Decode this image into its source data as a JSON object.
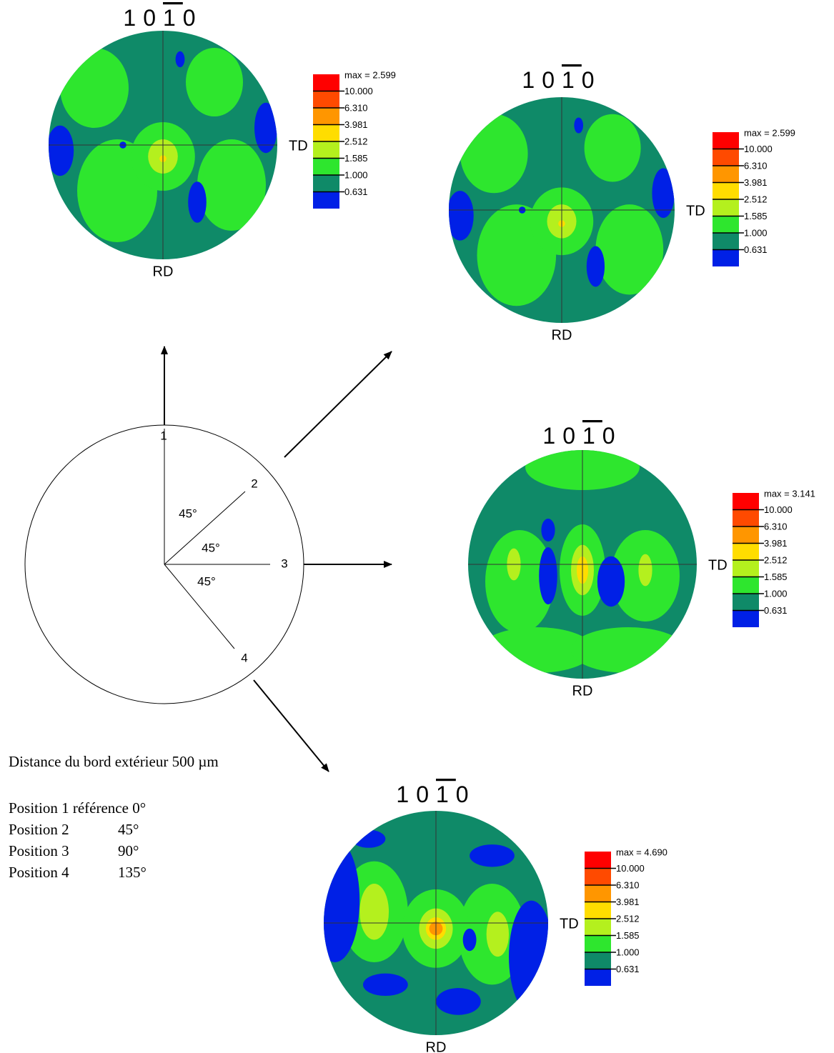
{
  "pole_figures": [
    {
      "title": [
        "1",
        "0",
        "1",
        "0"
      ],
      "max_label": "max = 2.599",
      "levels": [
        "10.000",
        "6.310",
        "3.981",
        "2.512",
        "1.585",
        "1.000",
        "0.631"
      ],
      "td": "TD",
      "rd": "RD"
    },
    {
      "title": [
        "1",
        "0",
        "1",
        "0"
      ],
      "max_label": "max = 2.599",
      "levels": [
        "10.000",
        "6.310",
        "3.981",
        "2.512",
        "1.585",
        "1.000",
        "0.631"
      ],
      "td": "TD",
      "rd": "RD"
    },
    {
      "title": [
        "1",
        "0",
        "1",
        "0"
      ],
      "max_label": "max = 3.141",
      "levels": [
        "10.000",
        "6.310",
        "3.981",
        "2.512",
        "1.585",
        "1.000",
        "0.631"
      ],
      "td": "TD",
      "rd": "RD"
    },
    {
      "title": [
        "1",
        "0",
        "1",
        "0"
      ],
      "max_label": "max = 4.690",
      "levels": [
        "10.000",
        "6.310",
        "3.981",
        "2.512",
        "1.585",
        "1.000",
        "0.631"
      ],
      "td": "TD",
      "rd": "RD"
    }
  ],
  "diagram": {
    "positions": [
      "1",
      "2",
      "3",
      "4"
    ],
    "angles": [
      "45°",
      "45°",
      "45°"
    ]
  },
  "notes": {
    "distance": "Distance du bord extérieur 500 µm",
    "rows": [
      [
        "Position 1 référence 0°"
      ],
      [
        "Position 2",
        "45°"
      ],
      [
        "Position 3",
        "90°"
      ],
      [
        "Position 4",
        "135°"
      ]
    ]
  }
}
